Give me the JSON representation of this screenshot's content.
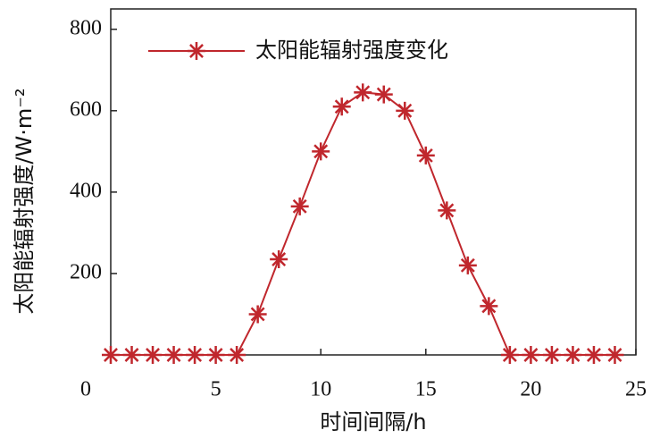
{
  "chart_data": {
    "type": "line",
    "xlabel": "时间间隔/h",
    "ylabel": "太阳能辐射强度/W·m⁻²",
    "x": [
      0,
      1,
      2,
      3,
      4,
      5,
      6,
      7,
      8,
      9,
      10,
      11,
      12,
      13,
      14,
      15,
      16,
      17,
      18,
      19,
      20,
      21,
      22,
      23,
      24
    ],
    "series": [
      {
        "name": "太阳能辐射强度变化",
        "color": "#c0272d",
        "values": [
          0,
          0,
          0,
          0,
          0,
          0,
          0,
          100,
          235,
          365,
          500,
          610,
          645,
          640,
          600,
          490,
          355,
          220,
          120,
          0,
          0,
          0,
          0,
          0,
          0
        ]
      }
    ],
    "xlim": [
      0,
      25
    ],
    "xticks": [
      0,
      5,
      10,
      15,
      20,
      25
    ],
    "ylim": [
      0,
      850
    ],
    "yticks": [
      200,
      400,
      600,
      800
    ],
    "grid": false,
    "legend": "upper left"
  }
}
